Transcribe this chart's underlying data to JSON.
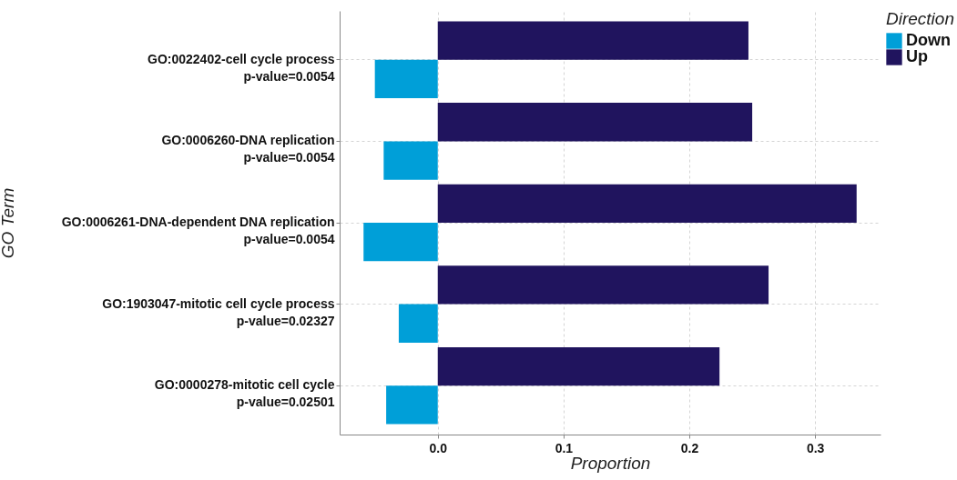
{
  "chart_data": {
    "type": "bar",
    "orientation": "horizontal",
    "xlabel": "Proportion",
    "ylabel": "GO Term",
    "legend_title": "Direction",
    "categories": [
      "GO:0022402-cell cycle process\np-value=0.0054",
      "GO:0006260-DNA replication\np-value=0.0054",
      "GO:0006261-DNA-dependent DNA replication\np-value=0.0054",
      "GO:1903047-mitotic cell cycle process\np-value=0.02327",
      "GO:0000278-mitotic cell cycle\np-value=0.02501"
    ],
    "series": [
      {
        "name": "Down",
        "color": "#009fd8",
        "values": [
          -0.05,
          -0.043,
          -0.059,
          -0.031,
          -0.041
        ]
      },
      {
        "name": "Up",
        "color": "#20145e",
        "values": [
          0.247,
          0.25,
          0.333,
          0.263,
          0.224
        ]
      }
    ],
    "xlim": [
      -0.078,
      0.352
    ],
    "xticks": [
      {
        "value": 0,
        "label": "0.0"
      },
      0.1,
      0.2,
      0.3
    ],
    "grid": true,
    "legend": "right"
  }
}
